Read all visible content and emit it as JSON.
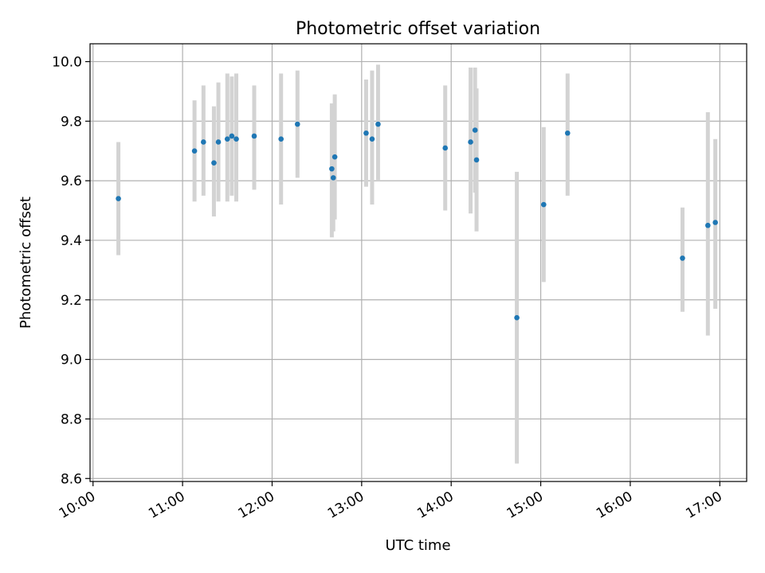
{
  "chart_data": {
    "type": "scatter",
    "title": "Photometric offset variation",
    "xlabel": "UTC time",
    "ylabel": "Photometric offset",
    "xlim": [
      "09:58",
      "17:18"
    ],
    "ylim": [
      8.59,
      10.06
    ],
    "xticks": [
      "10:00",
      "11:00",
      "12:00",
      "13:00",
      "14:00",
      "15:00",
      "16:00",
      "17:00"
    ],
    "yticks": [
      "8.6",
      "8.8",
      "9.0",
      "9.2",
      "9.4",
      "9.6",
      "9.8",
      "10.0"
    ],
    "grid": true,
    "point_color": "#1f77b4",
    "errorbar_color": "#d3d3d3",
    "series": [
      {
        "points": [
          {
            "x": "10:17",
            "y": 9.54,
            "ylow": 9.35,
            "yhigh": 9.73
          },
          {
            "x": "11:08",
            "y": 9.7,
            "ylow": 9.53,
            "yhigh": 9.87
          },
          {
            "x": "11:14",
            "y": 9.73,
            "ylow": 9.55,
            "yhigh": 9.92
          },
          {
            "x": "11:21",
            "y": 9.66,
            "ylow": 9.48,
            "yhigh": 9.85
          },
          {
            "x": "11:24",
            "y": 9.73,
            "ylow": 9.53,
            "yhigh": 9.93
          },
          {
            "x": "11:30",
            "y": 9.74,
            "ylow": 9.53,
            "yhigh": 9.96
          },
          {
            "x": "11:33",
            "y": 9.75,
            "ylow": 9.55,
            "yhigh": 9.95
          },
          {
            "x": "11:36",
            "y": 9.74,
            "ylow": 9.53,
            "yhigh": 9.96
          },
          {
            "x": "11:48",
            "y": 9.75,
            "ylow": 9.57,
            "yhigh": 9.92
          },
          {
            "x": "12:06",
            "y": 9.74,
            "ylow": 9.52,
            "yhigh": 9.96
          },
          {
            "x": "12:17",
            "y": 9.79,
            "ylow": 9.61,
            "yhigh": 9.97
          },
          {
            "x": "12:40",
            "y": 9.64,
            "ylow": 9.41,
            "yhigh": 9.86
          },
          {
            "x": "12:41",
            "y": 9.61,
            "ylow": 9.43,
            "yhigh": 9.79
          },
          {
            "x": "12:42",
            "y": 9.68,
            "ylow": 9.47,
            "yhigh": 9.89
          },
          {
            "x": "13:03",
            "y": 9.76,
            "ylow": 9.58,
            "yhigh": 9.94
          },
          {
            "x": "13:07",
            "y": 9.74,
            "ylow": 9.52,
            "yhigh": 9.97
          },
          {
            "x": "13:11",
            "y": 9.79,
            "ylow": 9.6,
            "yhigh": 9.99
          },
          {
            "x": "13:56",
            "y": 9.71,
            "ylow": 9.5,
            "yhigh": 9.92
          },
          {
            "x": "14:13",
            "y": 9.73,
            "ylow": 9.49,
            "yhigh": 9.98
          },
          {
            "x": "14:16",
            "y": 9.77,
            "ylow": 9.56,
            "yhigh": 9.98
          },
          {
            "x": "14:17",
            "y": 9.67,
            "ylow": 9.43,
            "yhigh": 9.91
          },
          {
            "x": "14:44",
            "y": 9.14,
            "ylow": 8.65,
            "yhigh": 9.63
          },
          {
            "x": "15:02",
            "y": 9.52,
            "ylow": 9.26,
            "yhigh": 9.78
          },
          {
            "x": "15:18",
            "y": 9.76,
            "ylow": 9.55,
            "yhigh": 9.96
          },
          {
            "x": "16:35",
            "y": 9.34,
            "ylow": 9.16,
            "yhigh": 9.51
          },
          {
            "x": "16:52",
            "y": 9.45,
            "ylow": 9.08,
            "yhigh": 9.83
          },
          {
            "x": "16:57",
            "y": 9.46,
            "ylow": 9.17,
            "yhigh": 9.74
          }
        ]
      }
    ]
  }
}
